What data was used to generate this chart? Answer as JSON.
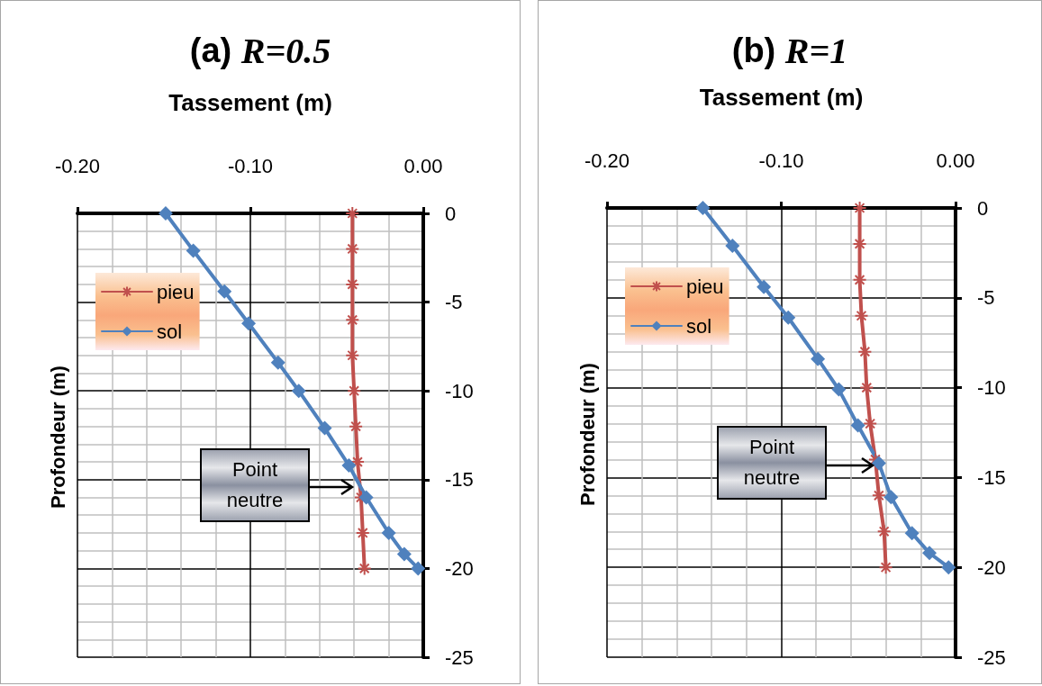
{
  "chart_data": [
    {
      "type": "line",
      "title": "(a) R=0.5",
      "xlabel": "Tassement (m)",
      "ylabel": "Profondeur (m)",
      "xlim": [
        -0.2,
        0
      ],
      "xticks": [
        {
          "value": -0.2,
          "label": "-0.20"
        },
        {
          "value": -0.1,
          "label": "-0.10"
        },
        {
          "value": 0,
          "label": "0.00"
        }
      ],
      "ylim": [
        -25,
        0
      ],
      "yticks": [
        0,
        -5,
        -10,
        -15,
        -20,
        -25
      ],
      "grid": true,
      "legend": "top left",
      "annotations": [
        "Point neutre"
      ],
      "series": [
        {
          "name": "pieu",
          "color": "#c0504d",
          "marker": "cross",
          "x": [
            -0.041,
            -0.041,
            -0.041,
            -0.041,
            -0.041,
            -0.04,
            -0.039,
            -0.038,
            -0.036,
            -0.035,
            -0.034
          ],
          "values": [
            0,
            -2,
            -4,
            -6,
            -8,
            -10,
            -12,
            -14,
            -16,
            -18,
            -20
          ]
        },
        {
          "name": "sol",
          "color": "#4f81bd",
          "marker": "diamond",
          "x": [
            -0.149,
            -0.133,
            -0.115,
            -0.101,
            -0.084,
            -0.072,
            -0.057,
            -0.043,
            -0.033,
            -0.02,
            -0.011,
            -0.003
          ],
          "values": [
            0,
            -2.1,
            -4.4,
            -6.2,
            -8.4,
            -10,
            -12.1,
            -14.2,
            -16,
            -18,
            -19.2,
            -20
          ]
        }
      ]
    },
    {
      "type": "line",
      "title": "(b) R=1",
      "xlabel": "Tassement (m)",
      "ylabel": "Profondeur (m)",
      "xlim": [
        -0.2,
        0
      ],
      "xticks": [
        {
          "value": -0.2,
          "label": "-0.20"
        },
        {
          "value": -0.1,
          "label": "-0.10"
        },
        {
          "value": 0,
          "label": "0.00"
        }
      ],
      "ylim": [
        -25,
        0
      ],
      "yticks": [
        0,
        -5,
        -10,
        -15,
        -20,
        -25
      ],
      "grid": true,
      "legend": "top left",
      "annotations": [
        "Point neutre"
      ],
      "series": [
        {
          "name": "pieu",
          "color": "#c0504d",
          "marker": "cross",
          "x": [
            -0.055,
            -0.055,
            -0.055,
            -0.054,
            -0.052,
            -0.051,
            -0.049,
            -0.046,
            -0.044,
            -0.041,
            -0.04
          ],
          "values": [
            0,
            -2,
            -4,
            -6,
            -8,
            -10,
            -12,
            -14,
            -16,
            -18,
            -20
          ]
        },
        {
          "name": "sol",
          "color": "#4f81bd",
          "marker": "diamond",
          "x": [
            -0.145,
            -0.128,
            -0.11,
            -0.096,
            -0.079,
            -0.067,
            -0.056,
            -0.044,
            -0.037,
            -0.025,
            -0.015,
            -0.004
          ],
          "values": [
            0,
            -2.1,
            -4.4,
            -6.1,
            -8.4,
            -10.1,
            -12.1,
            -14.2,
            -16.1,
            -18.1,
            -19.2,
            -20
          ]
        }
      ]
    }
  ]
}
